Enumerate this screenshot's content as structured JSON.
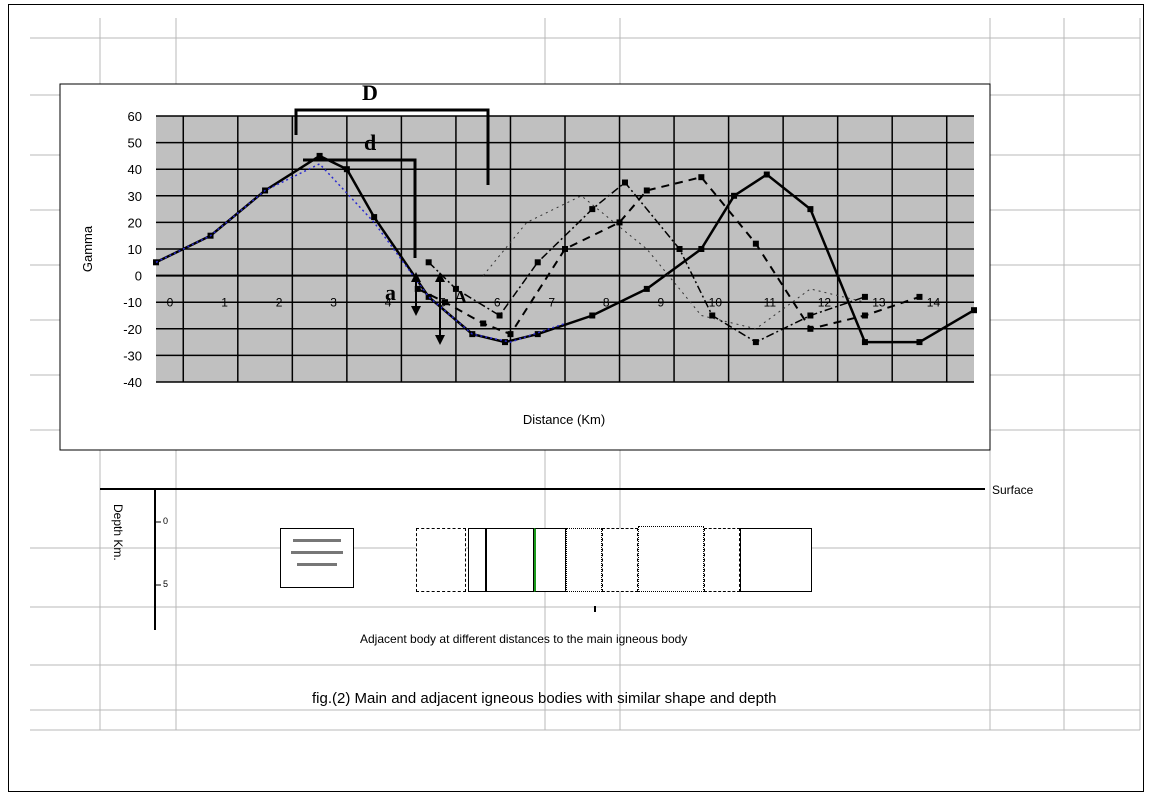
{
  "chart_data": {
    "type": "line",
    "xlabel": "Distance (Km)",
    "ylabel": "Gamma",
    "ylim": [
      -40,
      60
    ],
    "yticks": [
      "60",
      "50",
      "40",
      "30",
      "20",
      "10",
      "0",
      "-10",
      "-20",
      "-30",
      "-40"
    ],
    "xticks": [
      "0",
      "1",
      "2",
      "3",
      "4",
      "5",
      "6",
      "7",
      "8",
      "9",
      "10",
      "11",
      "12",
      "13",
      "14"
    ],
    "xlim": [
      0,
      15
    ],
    "grid": true,
    "series": [
      {
        "style": "main",
        "x": [
          0,
          1,
          2,
          3,
          3.5,
          4,
          5,
          5.8,
          6.4,
          7,
          8,
          9,
          10,
          10.6,
          11.2,
          12,
          13,
          14,
          15
        ],
        "y": [
          5,
          15,
          32,
          45,
          40,
          22,
          -8,
          -22,
          -25,
          -22,
          -15,
          -5,
          10,
          30,
          38,
          25,
          -25,
          -25,
          -13
        ]
      },
      {
        "style": "dotted-blue",
        "x": [
          0,
          1,
          2,
          3,
          4,
          5,
          5.8,
          6.5,
          7.5
        ],
        "y": [
          5,
          15,
          32,
          42,
          20,
          -8,
          -22,
          -25,
          -18
        ]
      },
      {
        "style": "dashed",
        "x": [
          4.8,
          5.3,
          6,
          6.5,
          7.5,
          8.5,
          9,
          10,
          11,
          12,
          13,
          14
        ],
        "y": [
          -5,
          -10,
          -18,
          -22,
          10,
          20,
          32,
          37,
          12,
          -20,
          -15,
          -8
        ]
      },
      {
        "style": "dashdot",
        "x": [
          5,
          5.5,
          6.3,
          7,
          8,
          8.6,
          9.6,
          10.2,
          11,
          12,
          13
        ],
        "y": [
          5,
          -5,
          -15,
          5,
          25,
          35,
          10,
          -15,
          -25,
          -15,
          -8
        ]
      },
      {
        "style": "thin",
        "x": [
          6,
          6.8,
          7.8,
          9,
          10,
          11,
          12,
          13
        ],
        "y": [
          0,
          20,
          30,
          10,
          -15,
          -20,
          -5,
          -10
        ]
      }
    ],
    "annotations": [
      "D",
      "d",
      "a",
      "A"
    ]
  },
  "lower_section": {
    "surface_label": "Surface",
    "depth_axis_label": "Depth Km.",
    "depth_ticks": [
      "0",
      "5"
    ],
    "caption": "Adjacent body at different distances to the main igneous body",
    "figure_caption": "fig.(2) Main and adjacent igneous bodies with similar shape and depth"
  }
}
